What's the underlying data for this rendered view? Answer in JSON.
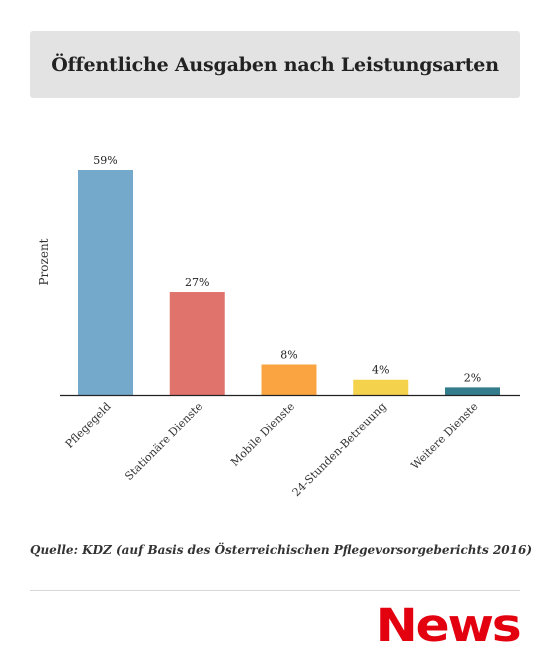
{
  "title": "Öffentliche Ausgaben nach Leistungsarten",
  "source": "Quelle: KDZ (auf Basis des Österreichischen Pflegevorsorgeberichts 2016)",
  "logo": {
    "text": "News",
    "color": "#e3000f"
  },
  "chart_data": {
    "type": "bar",
    "categories": [
      "Pflegegeld",
      "Stationäre Dienste",
      "Mobile Dienste",
      "24-Stunden-Betreuung",
      "Weitere Dienste"
    ],
    "values": [
      59,
      27,
      8,
      4,
      2
    ],
    "value_labels": [
      "59%",
      "27%",
      "8%",
      "4%",
      "2%"
    ],
    "colors": [
      "#74a9cc",
      "#e0736c",
      "#f9a441",
      "#f4d24b",
      "#327c8c"
    ],
    "ylabel": "Prozent",
    "xlabel": "",
    "ylim": [
      0,
      59
    ],
    "grid": false,
    "legend": "none"
  }
}
